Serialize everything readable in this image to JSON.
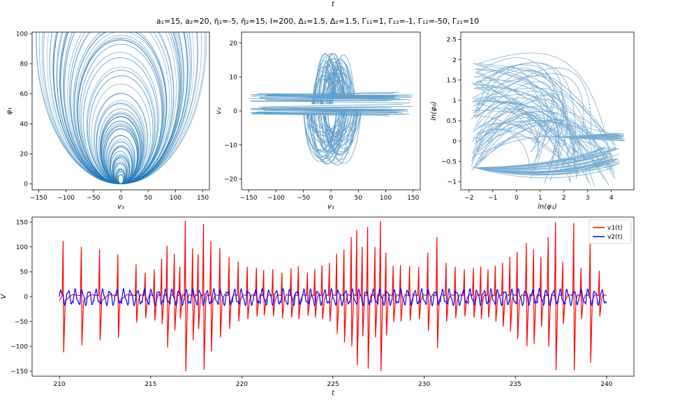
{
  "figure": {
    "top_label": "t",
    "suptitle": "a₁=15, a₂=20, η̄₁=-5, η̄₂=15, I=200, Δ₁=1.5, Δ₂=1.5, Γ₁₁=1, Γ₂₂=-1, Γ₁₂=-50, Γ₂₁=10"
  },
  "chart_data": [
    {
      "type": "line",
      "panel": "top-left",
      "description_of_content": "phase portrait, many overlapping circular loops tangent at origin",
      "xlabel": "v₁",
      "ylabel": "φ₁",
      "xlim": [
        -162,
        162
      ],
      "ylim": [
        -4,
        101
      ],
      "xticks": [
        -150,
        -100,
        -50,
        0,
        50,
        100,
        150
      ],
      "yticks": [
        0,
        20,
        40,
        60,
        80,
        100
      ],
      "series": [
        {
          "color": "#1f77b4",
          "loops_max_radius": 96,
          "loops_min_radius": 3
        }
      ]
    },
    {
      "type": "line",
      "panel": "top-middle",
      "xlabel": "v₁",
      "ylabel": "v₂",
      "xlim": [
        -163,
        163
      ],
      "ylim": [
        -23.2,
        23.2
      ],
      "xticks": [
        -150,
        -100,
        -50,
        0,
        50,
        100,
        150
      ],
      "yticks": [
        -20,
        -10,
        0,
        10,
        20
      ],
      "series": [
        {
          "color": "#1f77b4"
        }
      ]
    },
    {
      "type": "line",
      "panel": "top-right",
      "xlabel": "ln(φ₁)",
      "ylabel": "ln(φ₂)",
      "xlim": [
        -2.35,
        4.95
      ],
      "ylim": [
        -1.2,
        2.68
      ],
      "xticks": [
        -2,
        -1,
        0,
        1,
        2,
        3,
        4
      ],
      "yticks": [
        -1.0,
        -0.5,
        0.0,
        0.5,
        1.0,
        1.5,
        2.0,
        2.5
      ],
      "series": [
        {
          "color": "#1f77b4"
        }
      ]
    },
    {
      "type": "line",
      "panel": "bottom",
      "xlabel": "t",
      "ylabel": "V",
      "xlim": [
        208.5,
        241.5
      ],
      "ylim": [
        -160,
        160
      ],
      "xticks": [
        210,
        215,
        220,
        225,
        230,
        235,
        240
      ],
      "yticks": [
        -150,
        -100,
        -50,
        0,
        50,
        100,
        150
      ],
      "legend": "top-right",
      "series": [
        {
          "name": "v1(t)",
          "color": "#ff0000",
          "spikes": [
            {
              "t": 210.2,
              "up": 112,
              "down": -112
            },
            {
              "t": 211.2,
              "up": 100,
              "down": -98
            },
            {
              "t": 212.2,
              "up": 95,
              "down": -88
            },
            {
              "t": 213.2,
              "up": 85,
              "down": -83
            },
            {
              "t": 214.2,
              "up": 65,
              "down": -52
            },
            {
              "t": 214.7,
              "up": 48,
              "down": -43
            },
            {
              "t": 215.2,
              "up": 55,
              "down": -48
            },
            {
              "t": 215.6,
              "up": 76,
              "down": -55
            },
            {
              "t": 215.9,
              "up": 102,
              "down": -102
            },
            {
              "t": 216.3,
              "up": 86,
              "down": -68
            },
            {
              "t": 216.6,
              "up": 60,
              "down": -44
            },
            {
              "t": 216.9,
              "up": 153,
              "down": -150
            },
            {
              "t": 217.3,
              "up": 97,
              "down": -88
            },
            {
              "t": 217.6,
              "up": 85,
              "down": -65
            },
            {
              "t": 217.9,
              "up": 146,
              "down": -147
            },
            {
              "t": 218.3,
              "up": 112,
              "down": -110
            },
            {
              "t": 218.8,
              "up": 98,
              "down": -82
            },
            {
              "t": 219.3,
              "up": 80,
              "down": -65
            },
            {
              "t": 219.8,
              "up": 70,
              "down": -50
            },
            {
              "t": 220.3,
              "up": 60,
              "down": -45
            },
            {
              "t": 220.8,
              "up": 58,
              "down": -40
            },
            {
              "t": 221.2,
              "up": 53,
              "down": -38
            },
            {
              "t": 221.7,
              "up": 55,
              "down": -40
            },
            {
              "t": 222.2,
              "up": 48,
              "down": -43
            },
            {
              "t": 222.7,
              "up": 57,
              "down": -42
            },
            {
              "t": 223.1,
              "up": 61,
              "down": -45
            },
            {
              "t": 223.6,
              "up": 48,
              "down": -38
            },
            {
              "t": 224.0,
              "up": 55,
              "down": -42
            },
            {
              "t": 224.4,
              "up": 63,
              "down": -45
            },
            {
              "t": 224.8,
              "up": 68,
              "down": -50
            },
            {
              "t": 225.2,
              "up": 86,
              "down": -75
            },
            {
              "t": 225.6,
              "up": 95,
              "down": -92
            },
            {
              "t": 226.0,
              "up": 120,
              "down": -100
            },
            {
              "t": 226.3,
              "up": 134,
              "down": -138
            },
            {
              "t": 226.6,
              "up": 100,
              "down": -80
            },
            {
              "t": 226.9,
              "up": 140,
              "down": -145
            },
            {
              "t": 227.3,
              "up": 100,
              "down": -82
            },
            {
              "t": 227.6,
              "up": 152,
              "down": -150
            },
            {
              "t": 227.9,
              "up": 88,
              "down": -78
            },
            {
              "t": 228.3,
              "up": 62,
              "down": -51
            },
            {
              "t": 228.7,
              "up": 63,
              "down": -50
            },
            {
              "t": 229.2,
              "up": 61,
              "down": -48
            },
            {
              "t": 229.7,
              "up": 60,
              "down": -45
            },
            {
              "t": 230.2,
              "up": 88,
              "down": -69
            },
            {
              "t": 230.7,
              "up": 120,
              "down": -103
            },
            {
              "t": 231.2,
              "up": 68,
              "down": -50
            },
            {
              "t": 231.7,
              "up": 60,
              "down": -43
            },
            {
              "t": 232.2,
              "up": 55,
              "down": -40
            },
            {
              "t": 232.7,
              "up": 58,
              "down": -42
            },
            {
              "t": 233.1,
              "up": 60,
              "down": -45
            },
            {
              "t": 233.5,
              "up": 55,
              "down": -42
            },
            {
              "t": 233.9,
              "up": 62,
              "down": -50
            },
            {
              "t": 234.3,
              "up": 68,
              "down": -60
            },
            {
              "t": 234.7,
              "up": 80,
              "down": -70
            },
            {
              "t": 235.1,
              "up": 90,
              "down": -85
            },
            {
              "t": 235.6,
              "up": 108,
              "down": -100
            },
            {
              "t": 236.0,
              "up": 95,
              "down": -95
            },
            {
              "t": 236.4,
              "up": 80,
              "down": -60
            },
            {
              "t": 236.8,
              "up": 120,
              "down": -100
            },
            {
              "t": 237.2,
              "up": 150,
              "down": -148
            },
            {
              "t": 237.6,
              "up": 70,
              "down": -55
            },
            {
              "t": 238.2,
              "up": 148,
              "down": -148
            },
            {
              "t": 238.6,
              "up": 58,
              "down": -45
            },
            {
              "t": 239.1,
              "up": 108,
              "down": -133
            },
            {
              "t": 239.6,
              "up": 52,
              "down": -40
            }
          ]
        },
        {
          "name": "v2(t)",
          "color": "#0000ff",
          "approx_range": [
            -22,
            30
          ]
        }
      ]
    }
  ]
}
